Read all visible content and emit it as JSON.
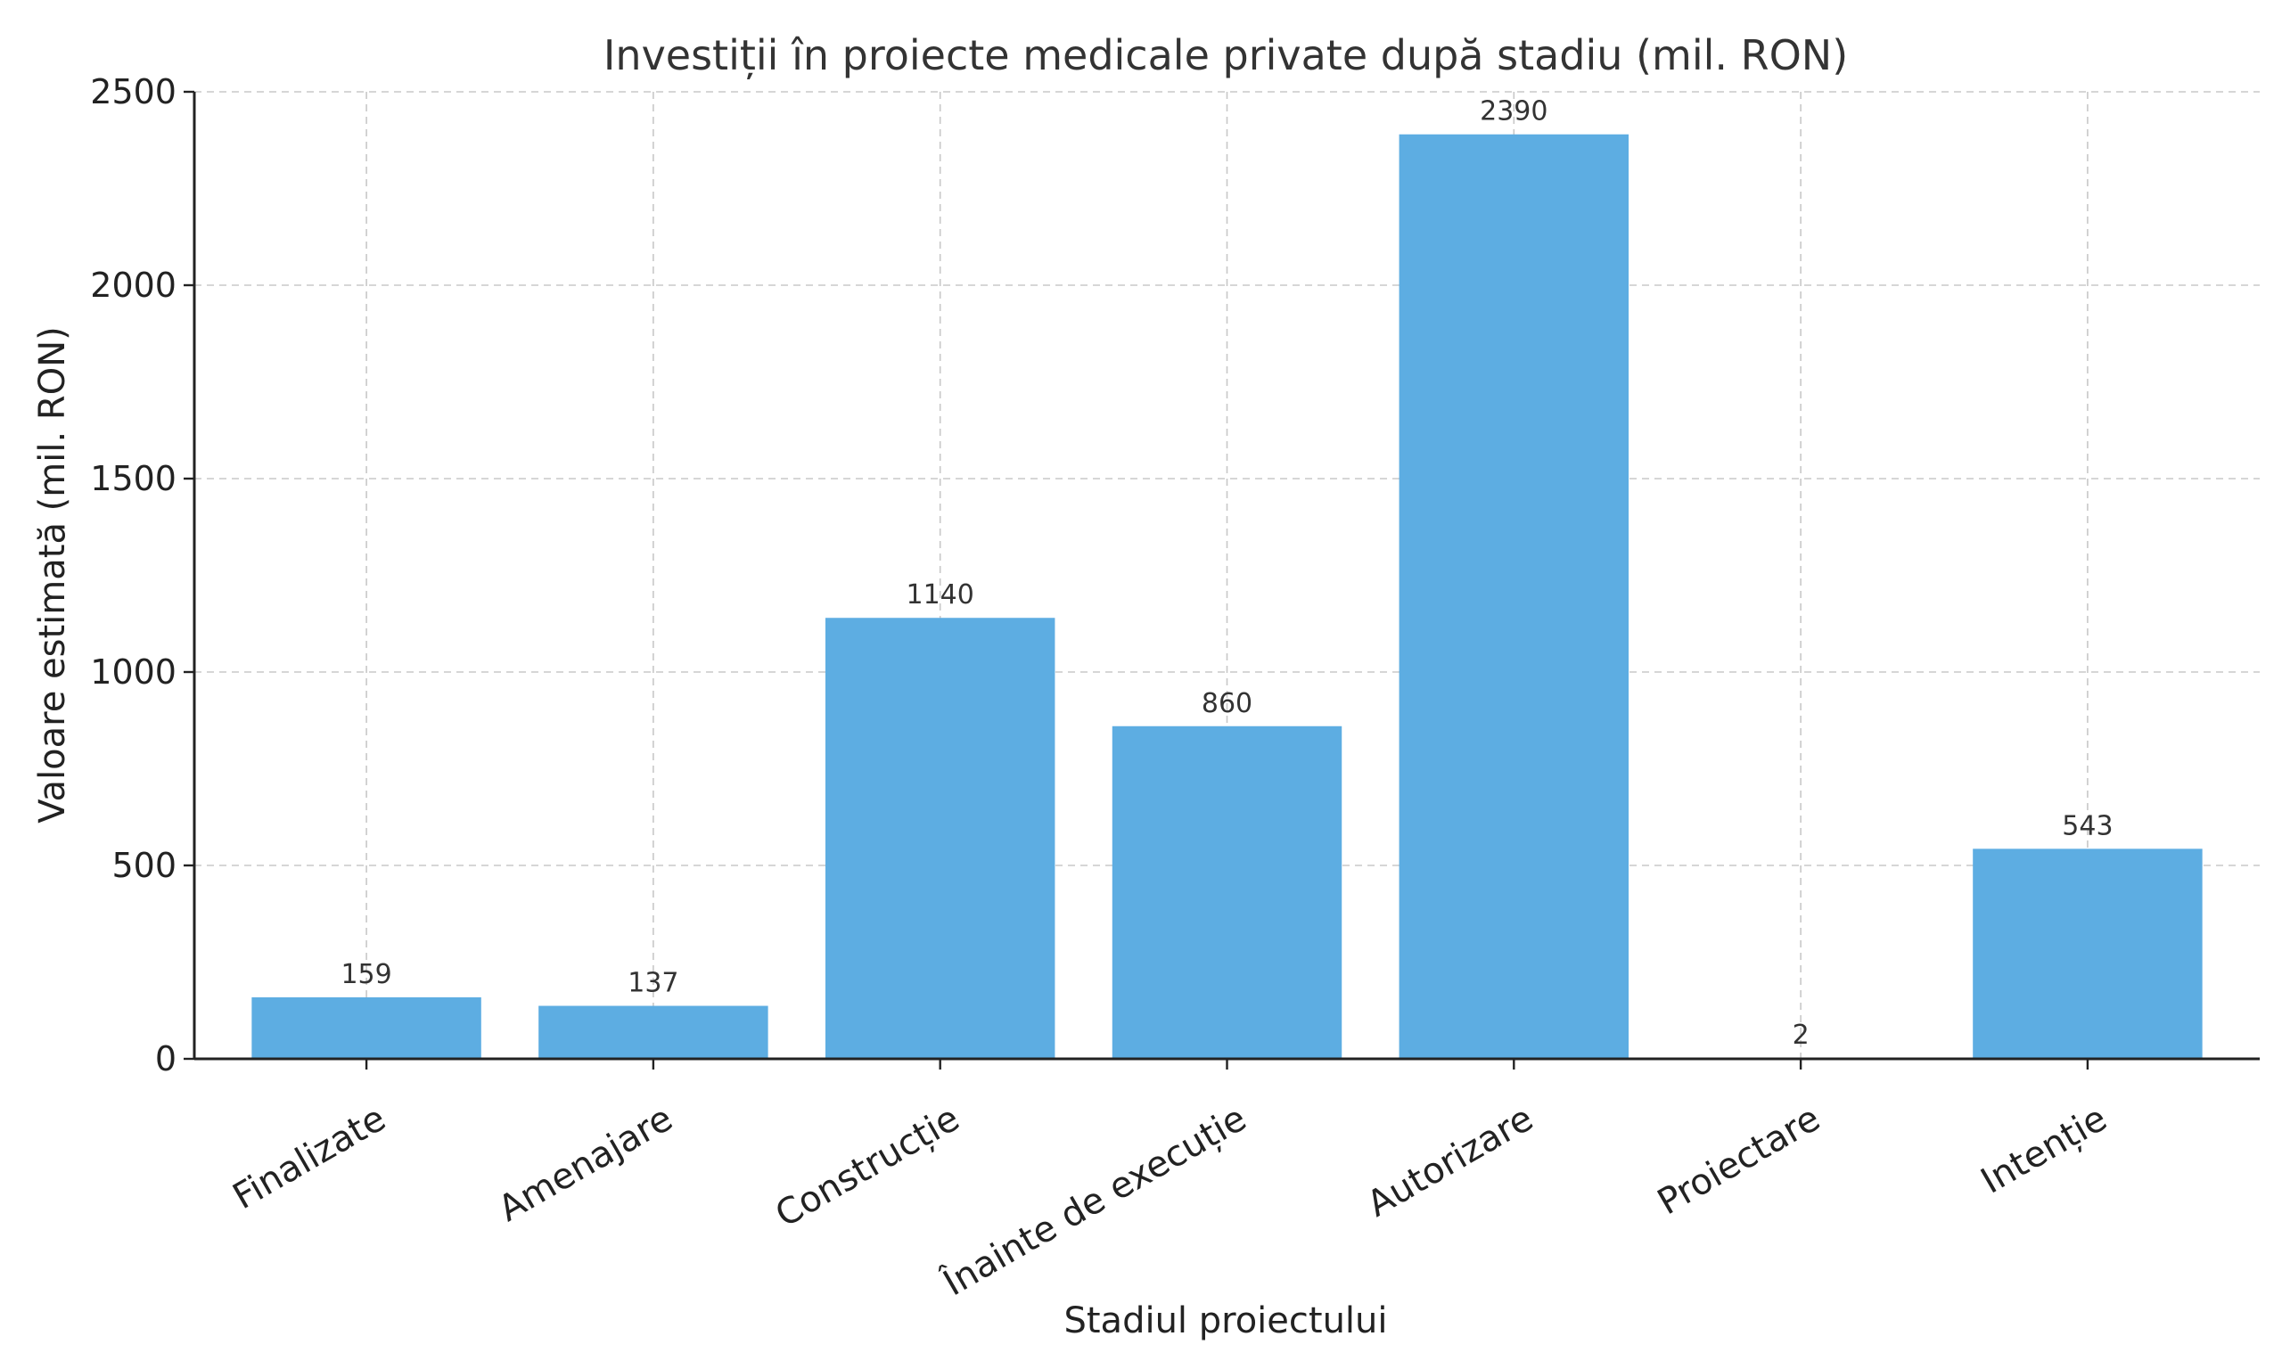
{
  "chart_data": {
    "type": "bar",
    "title": "Investiții în proiecte medicale private după stadiu (mil. RON)",
    "xlabel": "Stadiul proiectului",
    "ylabel": "Valoare estimată (mil. RON)",
    "categories": [
      "Finalizate",
      "Amenajare",
      "Construcție",
      "Înainte de execuție",
      "Autorizare",
      "Proiectare",
      "Intenție"
    ],
    "values": [
      159,
      137,
      1140,
      860,
      2390,
      2,
      543
    ],
    "ylim": [
      0,
      2500
    ],
    "yticks": [
      0,
      500,
      1000,
      1500,
      2000,
      2500
    ],
    "grid": true,
    "bar_color": "#5dade2",
    "x_tick_rotation_deg": 30
  }
}
